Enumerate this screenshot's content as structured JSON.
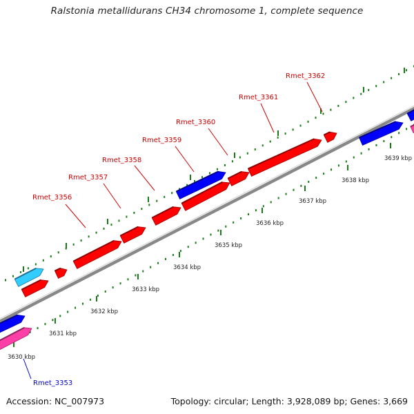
{
  "title": "Ralstonia metallidurans CH34 chromosome 1, complete sequence",
  "footer": {
    "accession": "Accession: NC_007973",
    "topology": "Topology: circular; Length: 3,928,089 bp; Genes: 3,669"
  },
  "colors": {
    "forward_gene": "#ff0000",
    "reverse_gene": "#0000ff",
    "magenta_feature": "#ff3fa8",
    "cyan_feature": "#33ccff",
    "tick": "#1a7a1a",
    "backbone": "#888888",
    "label_forward": "#cc0000",
    "label_reverse": "#0000cc"
  },
  "ticks": [
    {
      "label": "3630 kbp"
    },
    {
      "label": "3631 kbp"
    },
    {
      "label": "3632 kbp"
    },
    {
      "label": "3633 kbp"
    },
    {
      "label": "3634 kbp"
    },
    {
      "label": "3635 kbp"
    },
    {
      "label": "3636 kbp"
    },
    {
      "label": "3637 kbp"
    },
    {
      "label": "3638 kbp"
    },
    {
      "label": "3639 kbp"
    }
  ],
  "gene_labels": [
    {
      "name": "Rmet_3353",
      "strand": "reverse"
    },
    {
      "name": "Rmet_3356",
      "strand": "forward"
    },
    {
      "name": "Rmet_3357",
      "strand": "forward"
    },
    {
      "name": "Rmet_3358",
      "strand": "forward"
    },
    {
      "name": "Rmet_3359",
      "strand": "forward"
    },
    {
      "name": "Rmet_3360",
      "strand": "forward"
    },
    {
      "name": "Rmet_3361",
      "strand": "forward"
    },
    {
      "name": "Rmet_3362",
      "strand": "forward"
    }
  ]
}
